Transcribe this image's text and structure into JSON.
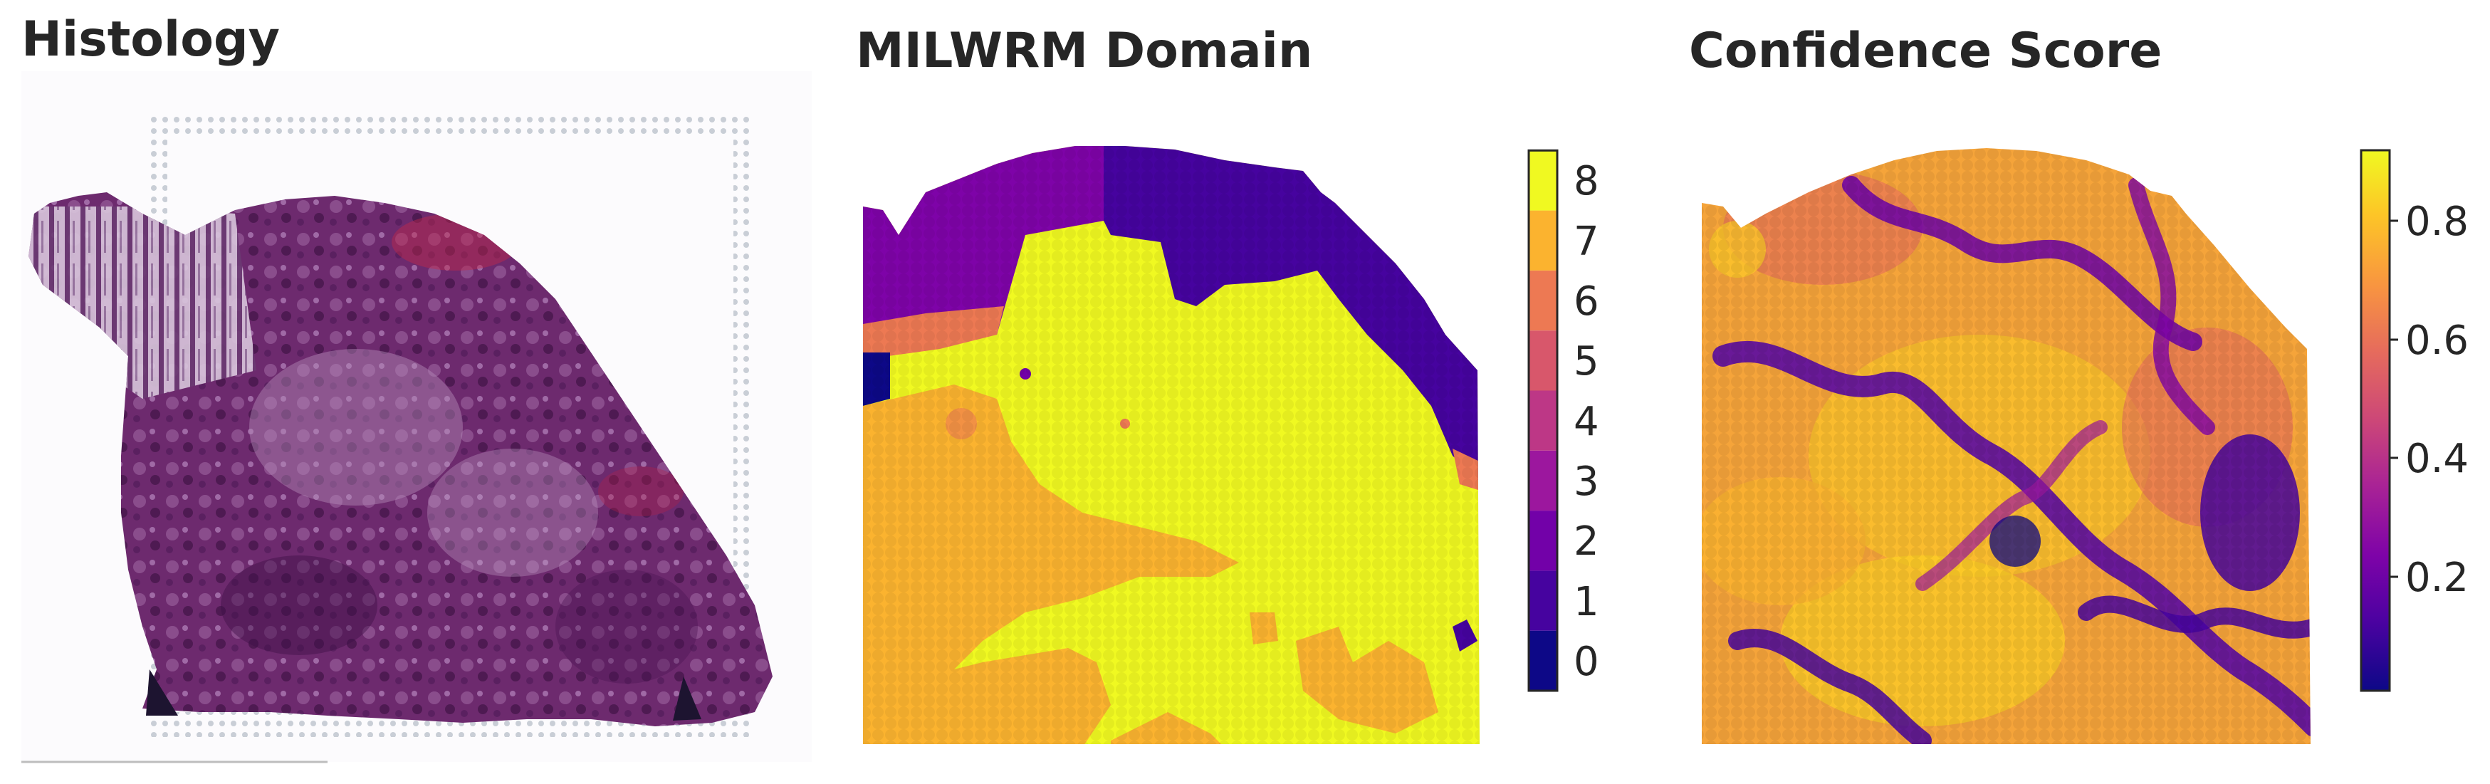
{
  "panels": [
    {
      "title": "Histology"
    },
    {
      "title": "MILWRM Domain"
    },
    {
      "title": "Confidence Score"
    }
  ],
  "domain_colorbar": {
    "ticks": [
      "0",
      "1",
      "2",
      "3",
      "4",
      "5",
      "6",
      "7",
      "8"
    ],
    "colors": [
      "#0d0887",
      "#46039f",
      "#7201a8",
      "#9c179e",
      "#bd3786",
      "#d8576b",
      "#ed7953",
      "#fbb32f",
      "#f0f921"
    ]
  },
  "confidence_colorbar": {
    "ticks": [
      "0.2",
      "0.4",
      "0.6",
      "0.8"
    ],
    "colormap": "plasma"
  }
}
